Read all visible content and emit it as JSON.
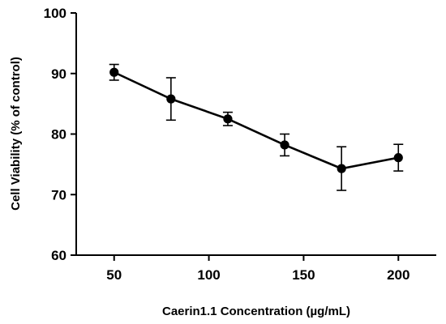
{
  "chart_data": {
    "type": "line",
    "title": "",
    "xlabel": "Caerin1.1 Concentration (µg/mL)",
    "ylabel": "Cell Viability (% of control)",
    "xlim": [
      30,
      220
    ],
    "ylim": [
      60,
      100
    ],
    "xticks": [
      50,
      100,
      150,
      200
    ],
    "yticks": [
      60,
      70,
      80,
      90,
      100
    ],
    "grid": false,
    "series": [
      {
        "x": [
          50,
          80,
          110,
          140,
          170,
          200
        ],
        "y": [
          90.2,
          85.8,
          82.5,
          78.2,
          74.3,
          76.1
        ],
        "error": [
          1.3,
          3.5,
          1.1,
          1.8,
          3.6,
          2.2
        ]
      }
    ],
    "colors": {
      "line": "#000000",
      "marker": "#000000"
    }
  }
}
